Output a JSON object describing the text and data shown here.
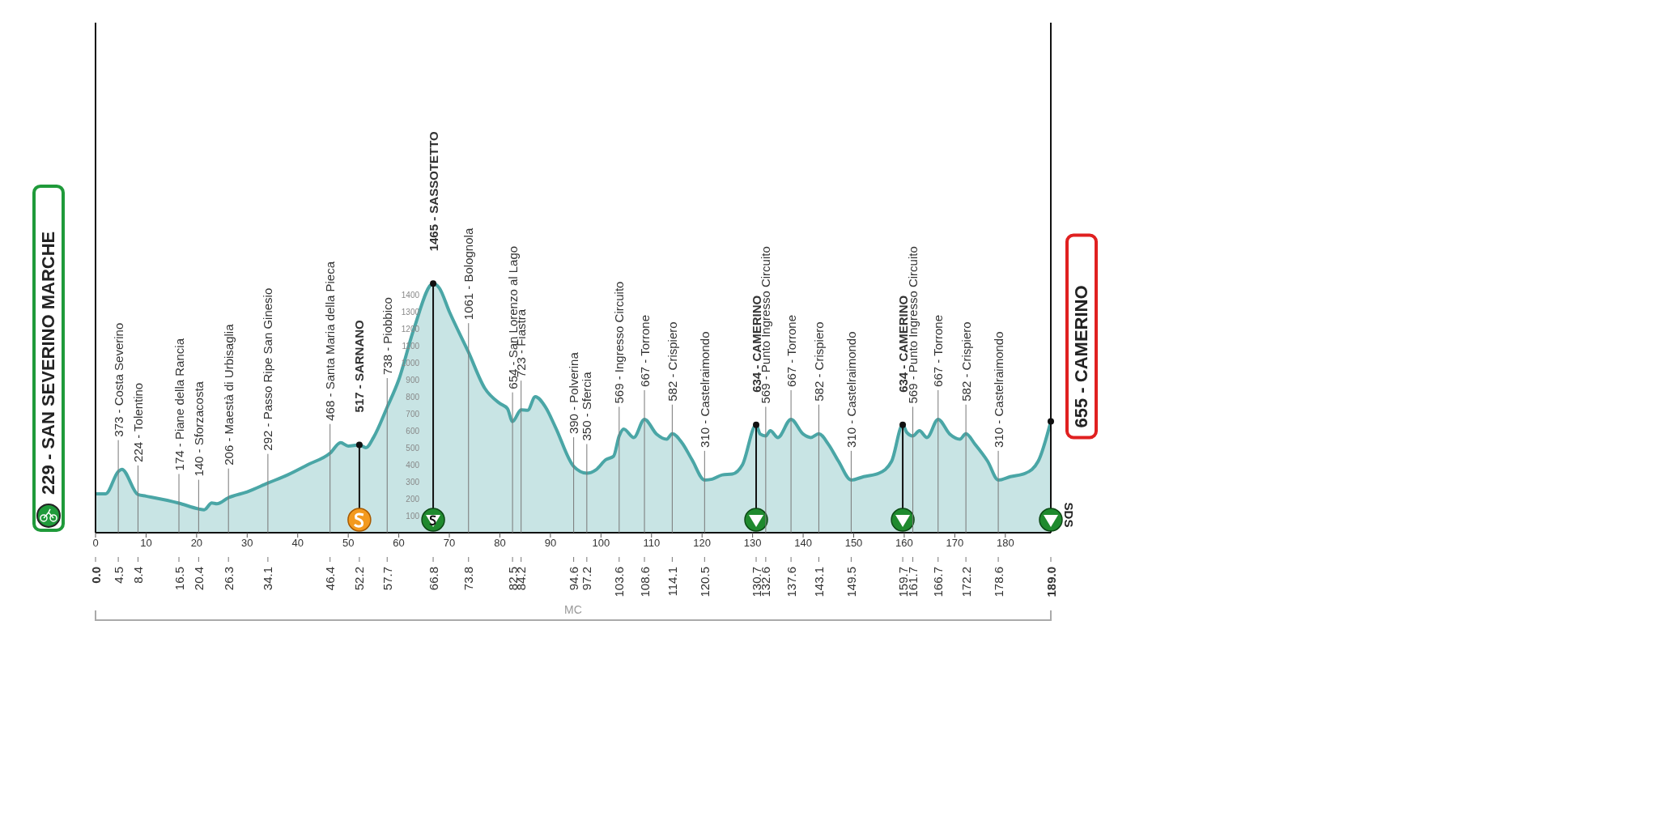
{
  "chart_data": {
    "type": "area",
    "x": [
      0,
      2,
      4.5,
      5.2,
      8.4,
      10,
      16.5,
      20.4,
      21.5,
      23,
      24,
      26.3,
      30,
      34.1,
      38,
      42,
      46.4,
      48.5,
      50,
      52.2,
      53.5,
      55,
      57.7,
      60,
      63,
      66.8,
      68,
      70,
      73.8,
      77,
      80,
      81.5,
      82.5,
      84.2,
      85.5,
      87,
      89,
      91,
      94.6,
      97.2,
      99,
      101,
      102.5,
      103.6,
      104.5,
      106.5,
      108.6,
      111,
      113,
      114.1,
      116,
      118,
      120.5,
      122,
      124,
      126,
      128,
      130.7,
      131.5,
      132.6,
      133.5,
      135,
      137.6,
      140,
      141.5,
      143.1,
      145,
      147,
      149.5,
      152,
      155,
      157.5,
      159.7,
      160.5,
      161.7,
      163,
      164.5,
      166.7,
      169,
      171,
      172.2,
      174,
      176.5,
      178.6,
      181,
      184,
      186.5,
      189
    ],
    "series": [
      {
        "color": "#4aa6a6",
        "values": [
          229,
          229,
          360,
          373,
          224,
          215,
          174,
          140,
          135,
          175,
          170,
          206,
          240,
          292,
          340,
          400,
          468,
          530,
          510,
          517,
          500,
          560,
          738,
          900,
          1200,
          1465,
          1440,
          1300,
          1061,
          850,
          760,
          730,
          654,
          723,
          720,
          800,
          740,
          620,
          390,
          350,
          370,
          430,
          450,
          569,
          610,
          560,
          667,
          580,
          550,
          582,
          530,
          430,
          310,
          315,
          340,
          345,
          400,
          634,
          580,
          569,
          600,
          560,
          667,
          580,
          560,
          582,
          520,
          420,
          310,
          330,
          350,
          420,
          634,
          590,
          569,
          600,
          560,
          667,
          580,
          550,
          582,
          520,
          420,
          310,
          330,
          350,
          420,
          655
        ]
      }
    ],
    "xlim": [
      0,
      189
    ],
    "xticks": [
      0,
      10,
      20,
      30,
      40,
      50,
      60,
      70,
      80,
      90,
      100,
      110,
      120,
      130,
      140,
      150,
      160,
      170,
      180
    ],
    "x2lim": [
      0,
      189
    ],
    "x2ticks": [
      {
        "value": 0,
        "label": "0.0"
      },
      4.5,
      8.4,
      16.5,
      20.4,
      26.3,
      34.1,
      46.4,
      52.2,
      57.7,
      66.8,
      73.8,
      82.5,
      84.2,
      94.6,
      97.2,
      103.6,
      108.6,
      114.1,
      120.5,
      130.7,
      132.6,
      137.6,
      143.1,
      149.5,
      159.7,
      161.7,
      166.7,
      172.2,
      178.6,
      {
        "value": 189,
        "label": "189.0"
      }
    ],
    "ylim": [
      0,
      3000
    ],
    "yticks": [
      100,
      200,
      300,
      400,
      500,
      600,
      700,
      800,
      900,
      1000,
      1100,
      1200,
      1300,
      1400
    ],
    "annotations": [
      {
        "text": "229 - SAN SEVERINO MARCHE",
        "x": 0,
        "y": 229
      },
      {
        "text": "373 - Costa Severino",
        "x": 4.5,
        "y": 373
      },
      {
        "text": "224 - Tolentino",
        "x": 8.4,
        "y": 224
      },
      {
        "text": "174 - Piane della Rancia",
        "x": 16.5,
        "y": 174
      },
      {
        "text": "140 - Sforzacosta",
        "x": 20.4,
        "y": 140
      },
      {
        "text": "206 - Maestà di Urbisaglia",
        "x": 26.3,
        "y": 206
      },
      {
        "text": "292 - Passo Ripe San Ginesio",
        "x": 34.1,
        "y": 292
      },
      {
        "text": "468 - Santa Maria della Pieca",
        "x": 46.4,
        "y": 468
      },
      {
        "text": "517 - SARNANO",
        "x": 52.2,
        "y": 517
      },
      {
        "text": "738 - Piobbico",
        "x": 57.7,
        "y": 738
      },
      {
        "text": "1465 - SASSOTETTO",
        "x": 66.8,
        "y": 1465
      },
      {
        "text": "1061 - Bolognola",
        "x": 73.8,
        "y": 1061
      },
      {
        "text": "654 - San Lorenzo al Lago",
        "x": 82.5,
        "y": 654
      },
      {
        "text": "723 - Fiastra",
        "x": 84.2,
        "y": 723
      },
      {
        "text": "390 - Polverina",
        "x": 94.6,
        "y": 390
      },
      {
        "text": "350 - Sfercia",
        "x": 97.2,
        "y": 350
      },
      {
        "text": "569 - Ingresso Circuito",
        "x": 103.6,
        "y": 569
      },
      {
        "text": "667 - Torrone",
        "x": 108.6,
        "y": 667
      },
      {
        "text": "582 - Crispiero",
        "x": 114.1,
        "y": 582
      },
      {
        "text": "310 - Castelraimondo",
        "x": 120.5,
        "y": 310
      },
      {
        "text": "634 - CAMERINO",
        "x": 130.7,
        "y": 634
      },
      {
        "text": "569 - Punto Ingresso Circuito",
        "x": 132.6,
        "y": 569
      },
      {
        "text": "667 - Torrone",
        "x": 137.6,
        "y": 667
      },
      {
        "text": "582 - Crispiero",
        "x": 143.1,
        "y": 582
      },
      {
        "text": "310 - Castelraimondo",
        "x": 149.5,
        "y": 310
      },
      {
        "text": "634 - CAMERINO",
        "x": 159.7,
        "y": 634
      },
      {
        "text": "569 - Punto Ingresso Circuito",
        "x": 161.7,
        "y": 569
      },
      {
        "text": "667 - Torrone",
        "x": 166.7,
        "y": 667
      },
      {
        "text": "582 - Crispiero",
        "x": 172.2,
        "y": 582
      },
      {
        "text": "310 - Castelraimondo",
        "x": 178.6,
        "y": 310
      },
      {
        "text": "655 - CAMERINO",
        "x": 189,
        "y": 655
      },
      "MC",
      "SDS"
    ]
  }
}
